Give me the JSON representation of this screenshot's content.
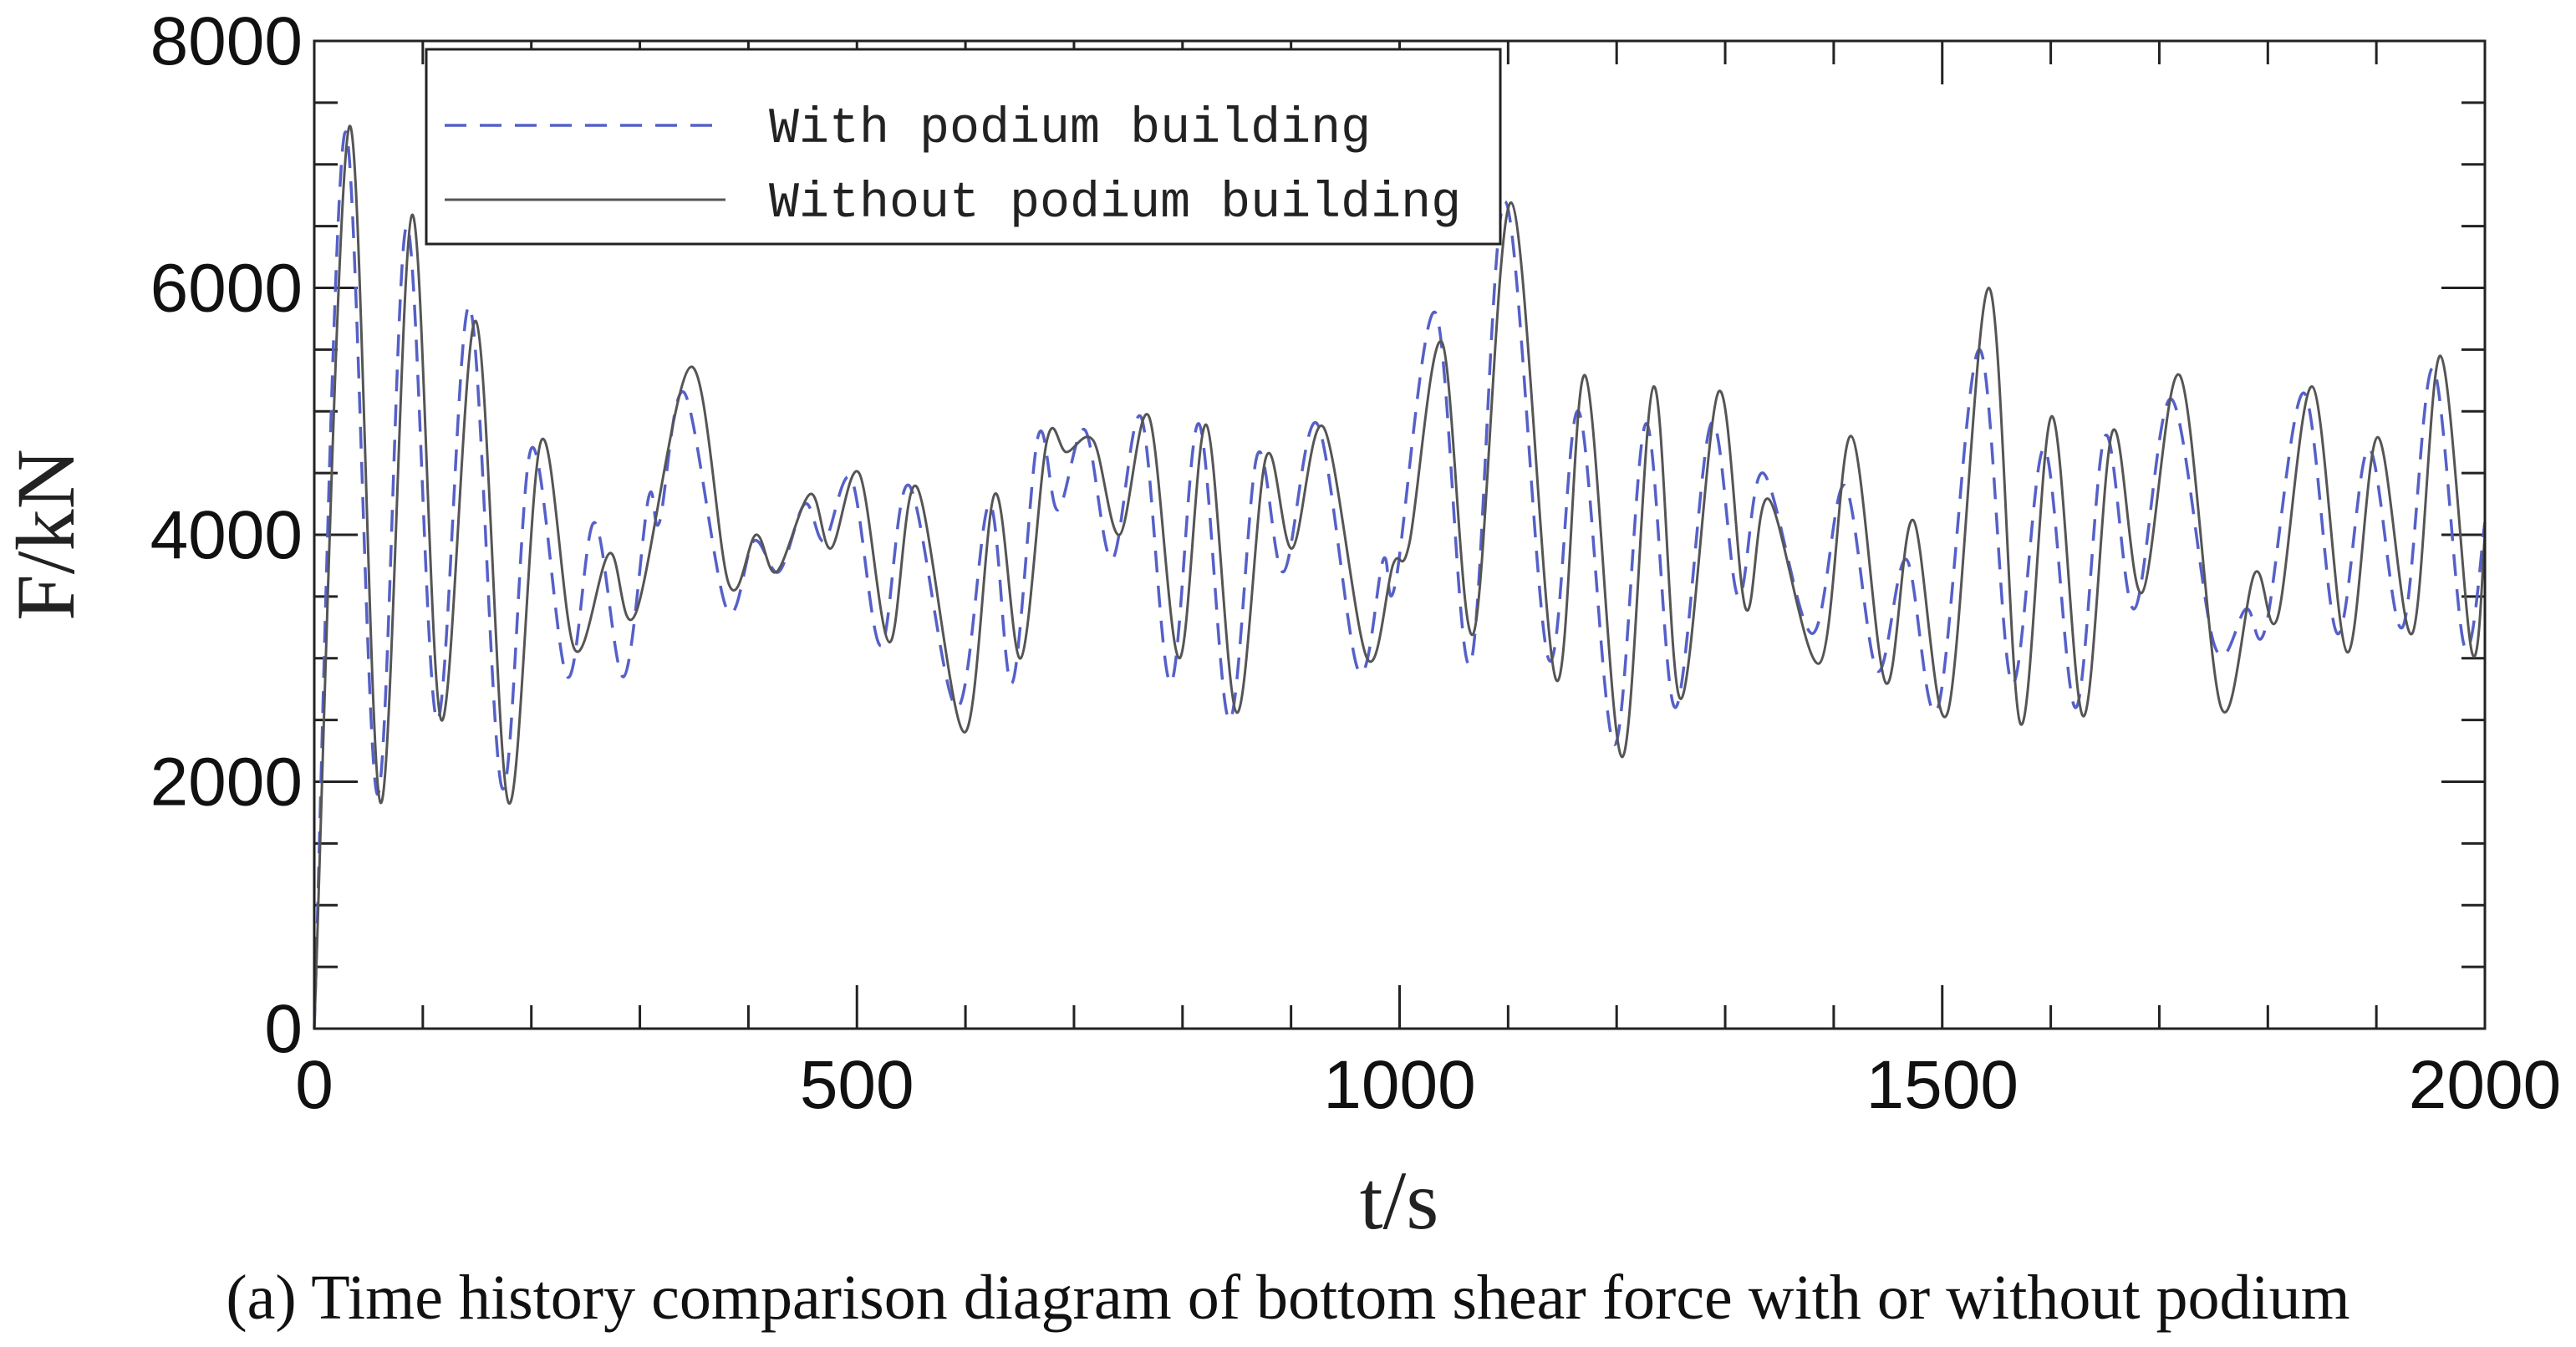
{
  "chart_data": {
    "type": "line",
    "xlabel": "t/s",
    "ylabel": "F/kN",
    "caption": "(a) Time history comparison diagram of bottom shear force with or without podium",
    "xlim": [
      0,
      2000
    ],
    "xticks": [
      0,
      500,
      1000,
      1500,
      2000
    ],
    "ylim": [
      0,
      8000
    ],
    "yticks": [
      0,
      2000,
      4000,
      6000,
      8000
    ],
    "legend": "upper left",
    "series": [
      {
        "name": "With podium building",
        "color": "#5560c8",
        "dash": true,
        "x": [
          0,
          28,
          58,
          85,
          113,
          143,
          173,
          200,
          233,
          258,
          285,
          308,
          318,
          341,
          380,
          405,
          428,
          452,
          470,
          495,
          522,
          548,
          592,
          622,
          643,
          667,
          685,
          710,
          735,
          762,
          789,
          815,
          843,
          869,
          893,
          924,
          962,
          985,
          996,
          1033,
          1065,
          1097,
          1137,
          1165,
          1198,
          1227,
          1254,
          1287,
          1312,
          1335,
          1380,
          1410,
          1440,
          1467,
          1496,
          1534,
          1564,
          1594,
          1623,
          1650,
          1677,
          1711,
          1751,
          1780,
          1798,
          1833,
          1864,
          1893,
          1924,
          1952,
          1981,
          2000
        ],
        "values": [
          0,
          7250,
          1900,
          6500,
          2500,
          5850,
          1950,
          4700,
          2850,
          4100,
          2850,
          4300,
          4100,
          5150,
          3400,
          3950,
          3700,
          4250,
          3950,
          4450,
          3100,
          4400,
          2600,
          4250,
          2800,
          4800,
          4200,
          4850,
          3800,
          4950,
          2800,
          4900,
          2500,
          4650,
          3700,
          4900,
          2900,
          3800,
          3600,
          5800,
          2950,
          6700,
          3000,
          5000,
          2300,
          4900,
          2600,
          4900,
          3500,
          4500,
          3200,
          4400,
          2900,
          3800,
          2600,
          5500,
          2800,
          4700,
          2600,
          4800,
          3400,
          5100,
          3100,
          3400,
          3250,
          5150,
          3200,
          4700,
          3250,
          5350,
          3100,
          4100
        ]
      },
      {
        "name": "Without podium building",
        "color": "#555555",
        "dash": false,
        "x": [
          0,
          32,
          61,
          90,
          117,
          149,
          179,
          209,
          240,
          272,
          296,
          347,
          382,
          407,
          426,
          457,
          476,
          502,
          530,
          555,
          599,
          627,
          651,
          675,
          693,
          718,
          742,
          769,
          797,
          822,
          850,
          877,
          901,
          930,
          970,
          994,
          1009,
          1039,
          1068,
          1103,
          1144,
          1171,
          1205,
          1234,
          1259,
          1294,
          1319,
          1340,
          1387,
          1416,
          1448,
          1473,
          1505,
          1543,
          1572,
          1601,
          1630,
          1657,
          1684,
          1719,
          1757,
          1788,
          1809,
          1841,
          1873,
          1901,
          1933,
          1959,
          1988,
          2000
        ],
        "values": [
          0,
          7300,
          1830,
          6590,
          2500,
          5730,
          1830,
          4760,
          3070,
          3850,
          3360,
          5360,
          3600,
          4000,
          3700,
          4330,
          3890,
          4500,
          3130,
          4390,
          2400,
          4330,
          3000,
          4760,
          4670,
          4760,
          4000,
          4960,
          3000,
          4890,
          2560,
          4630,
          3890,
          4870,
          3000,
          3760,
          3930,
          5560,
          3200,
          6690,
          2830,
          5290,
          2200,
          5200,
          2670,
          5160,
          3400,
          4290,
          2960,
          4800,
          2800,
          4120,
          2560,
          6000,
          2470,
          4960,
          2530,
          4840,
          3530,
          5290,
          2600,
          3690,
          3330,
          5200,
          3050,
          4790,
          3200,
          5450,
          3050,
          4000
        ]
      }
    ]
  }
}
